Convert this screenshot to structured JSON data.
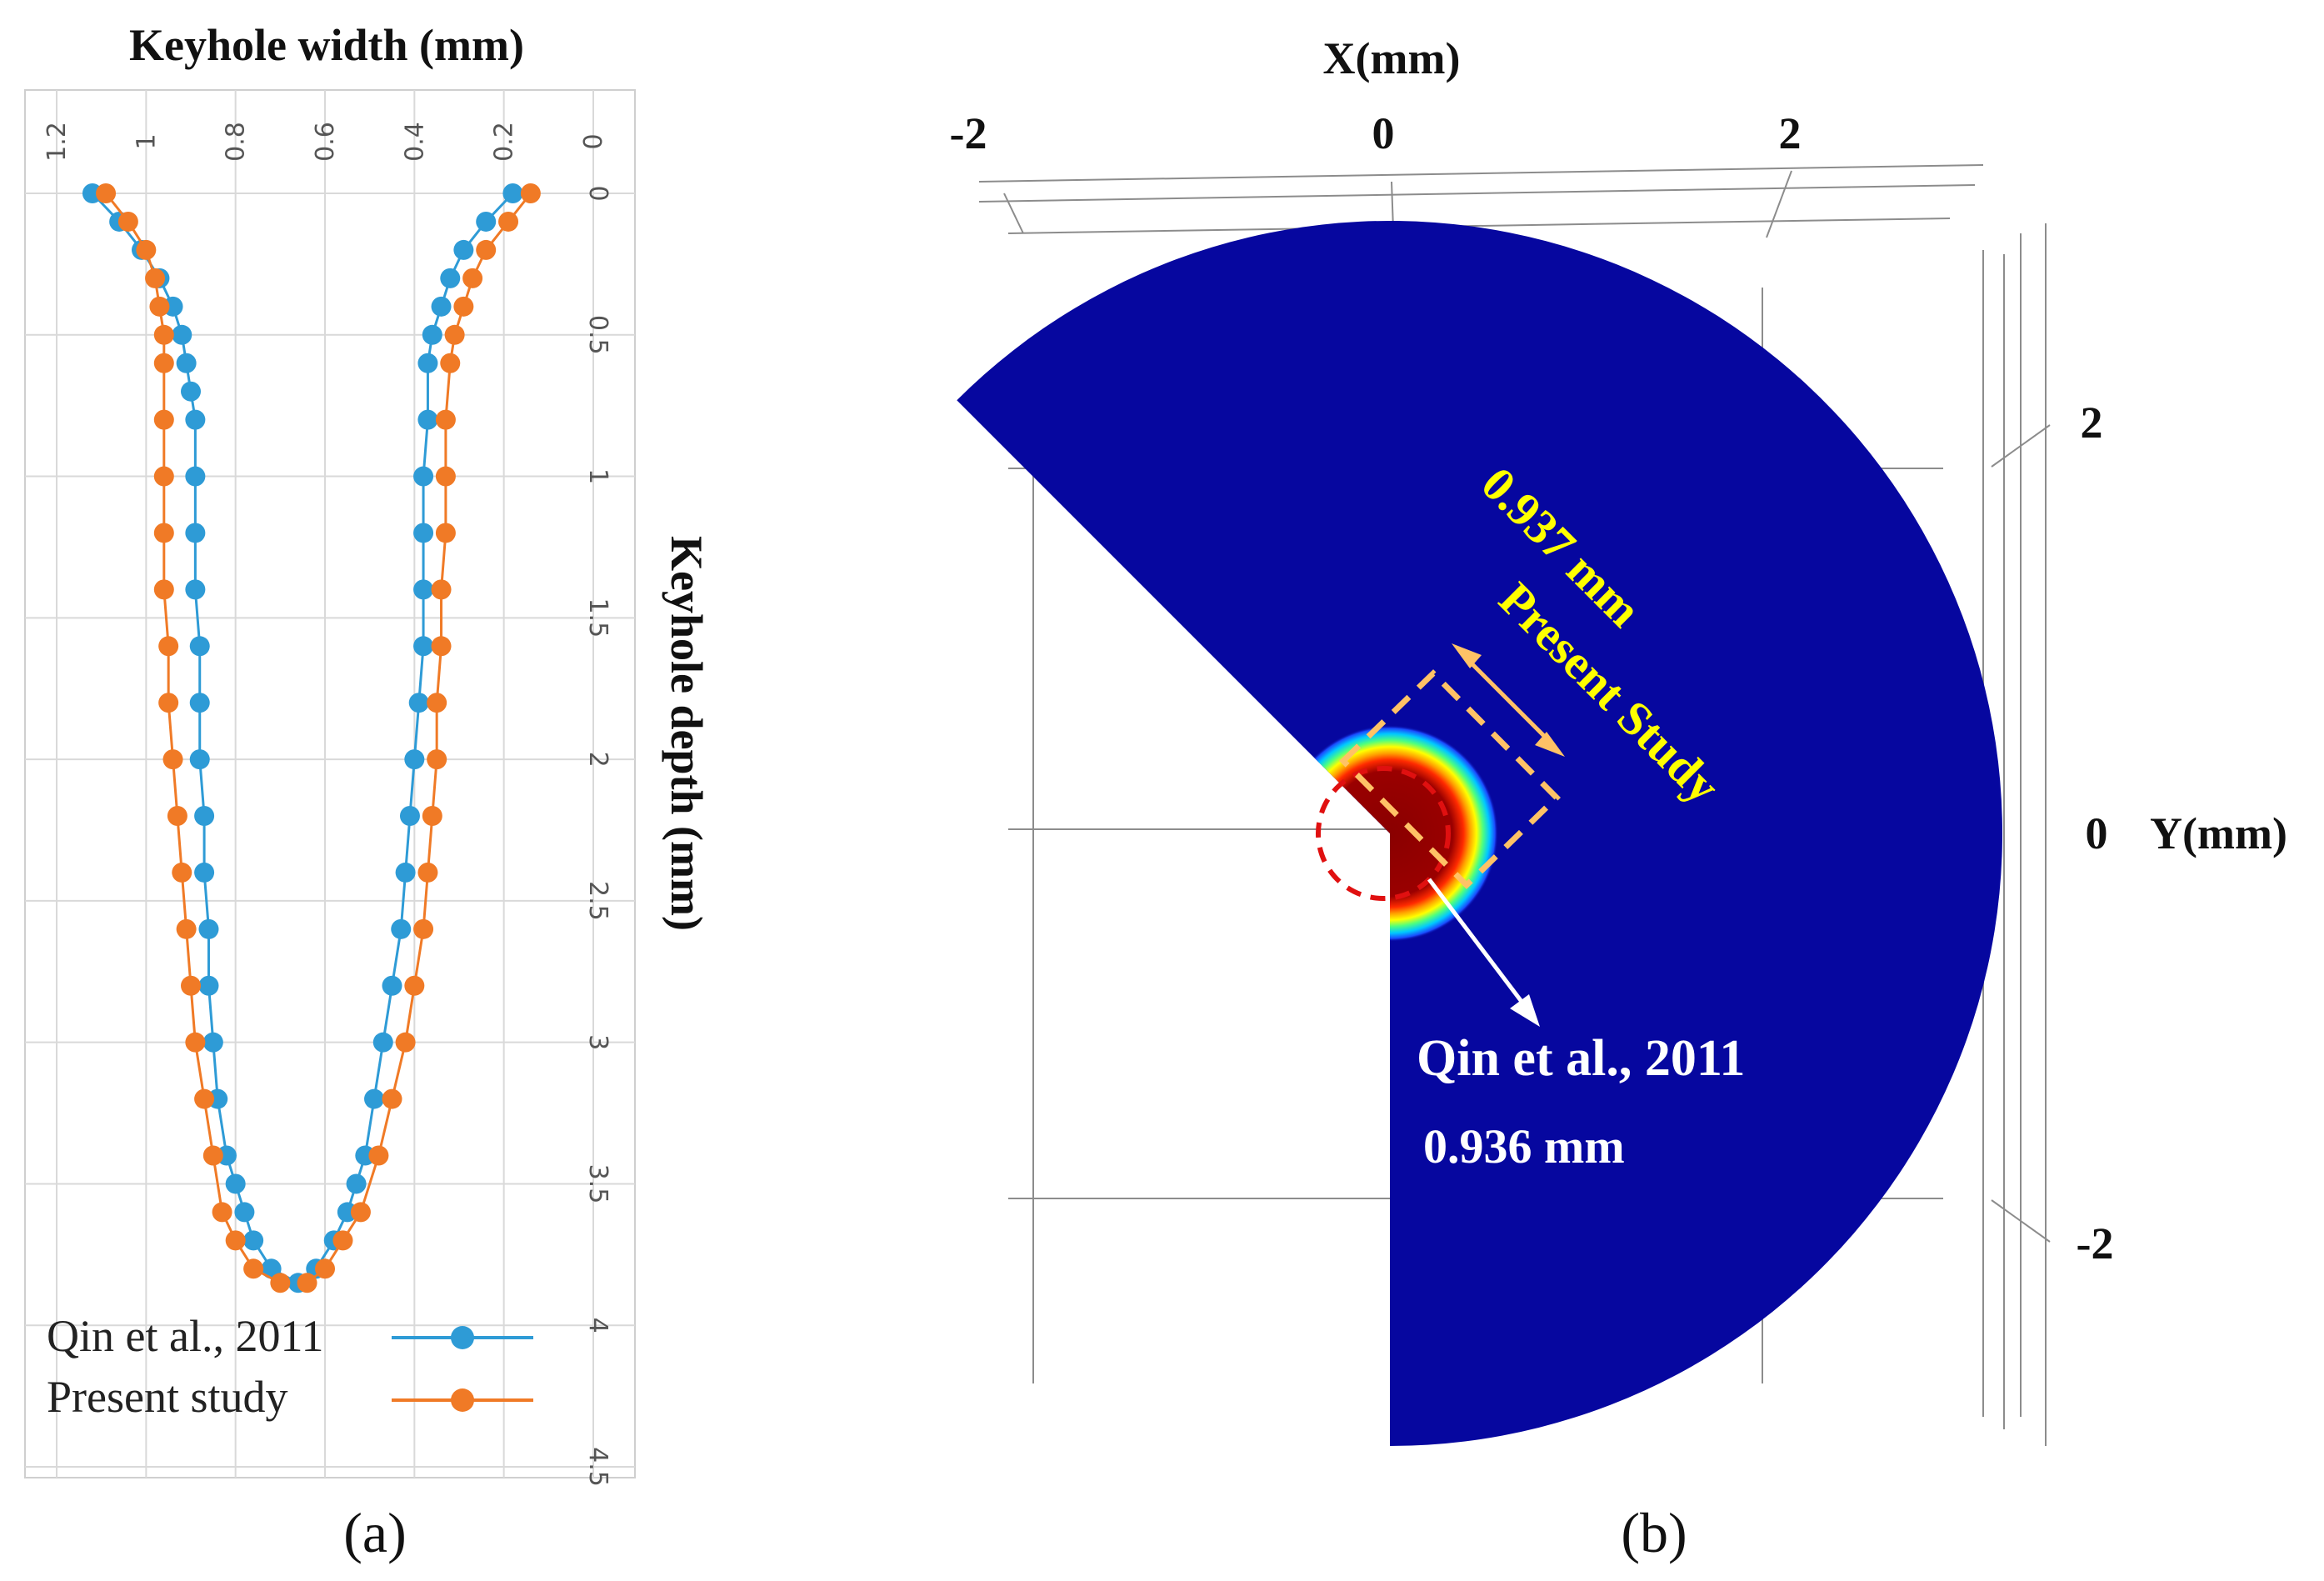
{
  "panel_a": {
    "caption": "(a)",
    "chart_data": {
      "type": "line",
      "title": "",
      "xlabel": "Keyhole width (mm)",
      "ylabel": "Keyhole depth (mm)",
      "xlim": [
        1.2,
        0
      ],
      "ylim": [
        0,
        4.5
      ],
      "x_ticks": [
        "1.2",
        "1",
        "0.8",
        "0.6",
        "0.4",
        "0.2",
        "0"
      ],
      "y_ticks": [
        "0",
        "0.5",
        "1",
        "1.5",
        "2",
        "2.5",
        "3",
        "3.5",
        "4",
        "4.5"
      ],
      "grid": true,
      "legend_position": "bottom-left",
      "series": [
        {
          "name": "Qin et al., 2011",
          "color": "#2e9bd6",
          "left": {
            "depth": [
              0,
              0.1,
              0.2,
              0.3,
              0.4,
              0.5,
              0.6,
              0.7,
              0.8,
              1.0,
              1.2,
              1.4,
              1.6,
              1.8,
              2.0,
              2.2,
              2.4,
              2.6,
              2.8,
              3.0,
              3.2,
              3.4,
              3.5,
              3.6,
              3.7,
              3.8,
              3.85
            ],
            "width": [
              1.12,
              1.06,
              1.01,
              0.97,
              0.94,
              0.92,
              0.91,
              0.9,
              0.89,
              0.89,
              0.89,
              0.89,
              0.88,
              0.88,
              0.88,
              0.87,
              0.87,
              0.86,
              0.86,
              0.85,
              0.84,
              0.82,
              0.8,
              0.78,
              0.76,
              0.72,
              0.66
            ]
          },
          "right": {
            "depth": [
              0,
              0.1,
              0.2,
              0.3,
              0.4,
              0.5,
              0.6,
              0.8,
              1.0,
              1.2,
              1.4,
              1.6,
              1.8,
              2.0,
              2.2,
              2.4,
              2.6,
              2.8,
              3.0,
              3.2,
              3.4,
              3.5,
              3.6,
              3.7,
              3.8
            ],
            "width": [
              0.18,
              0.24,
              0.29,
              0.32,
              0.34,
              0.36,
              0.37,
              0.37,
              0.38,
              0.38,
              0.38,
              0.38,
              0.39,
              0.4,
              0.41,
              0.42,
              0.43,
              0.45,
              0.47,
              0.49,
              0.51,
              0.53,
              0.55,
              0.58,
              0.62
            ]
          }
        },
        {
          "name": "Present study",
          "color": "#f07a26",
          "left": {
            "depth": [
              0,
              0.1,
              0.2,
              0.3,
              0.4,
              0.5,
              0.6,
              0.8,
              1.0,
              1.2,
              1.4,
              1.6,
              1.8,
              2.0,
              2.2,
              2.4,
              2.6,
              2.8,
              3.0,
              3.2,
              3.4,
              3.6,
              3.7,
              3.8,
              3.85
            ],
            "width": [
              1.09,
              1.04,
              1.0,
              0.98,
              0.97,
              0.96,
              0.96,
              0.96,
              0.96,
              0.96,
              0.96,
              0.95,
              0.95,
              0.94,
              0.93,
              0.92,
              0.91,
              0.9,
              0.89,
              0.87,
              0.85,
              0.83,
              0.8,
              0.76,
              0.7
            ]
          },
          "right": {
            "depth": [
              0,
              0.1,
              0.2,
              0.3,
              0.4,
              0.5,
              0.6,
              0.8,
              1.0,
              1.2,
              1.4,
              1.6,
              1.8,
              2.0,
              2.2,
              2.4,
              2.6,
              2.8,
              3.0,
              3.2,
              3.4,
              3.6,
              3.7,
              3.8,
              3.85
            ],
            "width": [
              0.14,
              0.19,
              0.24,
              0.27,
              0.29,
              0.31,
              0.32,
              0.33,
              0.33,
              0.33,
              0.34,
              0.34,
              0.35,
              0.35,
              0.36,
              0.37,
              0.38,
              0.4,
              0.42,
              0.45,
              0.48,
              0.52,
              0.56,
              0.6,
              0.64
            ]
          }
        }
      ]
    }
  },
  "panel_b": {
    "caption": "(b)",
    "x_axis_title": "X(mm)",
    "y_axis_title": "Y(mm)",
    "x_ticks": [
      "-2",
      "0",
      "2"
    ],
    "y_ticks": [
      "2",
      "0",
      "-2"
    ],
    "annotation_present_value": "0.937 mm",
    "annotation_present_label": "Present Study",
    "annotation_qin_label": "Qin et al., 2011",
    "annotation_qin_value": "0.936 mm",
    "colors": {
      "domain": "#06079f",
      "hot": "#8f0000",
      "yellow_text": "#ffff00",
      "dashed_box": "#ffc266",
      "dashed_circle": "#e01010"
    }
  }
}
